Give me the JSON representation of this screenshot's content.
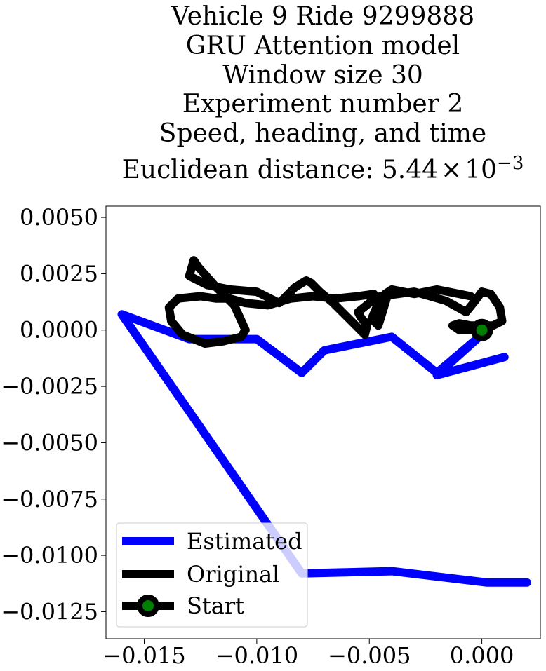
{
  "chart_data": {
    "type": "line",
    "title_lines": [
      "Vehicle 9 Ride 9299888",
      "GRU Attention model",
      "Window size 30",
      "Experiment number 2",
      "Speed, heading, and time"
    ],
    "distance_label": "Euclidean distance: ",
    "distance_mantissa": "5.44",
    "distance_times": "×",
    "distance_base": "10",
    "distance_exponent": "−3",
    "xlim": [
      -0.0167,
      0.0026
    ],
    "ylim": [
      -0.0137,
      0.0055
    ],
    "x_ticks": [
      {
        "value": -0.015,
        "label": "−0.015"
      },
      {
        "value": -0.01,
        "label": "−0.010"
      },
      {
        "value": -0.005,
        "label": "−0.005"
      },
      {
        "value": 0.0,
        "label": "0.000"
      }
    ],
    "y_ticks": [
      {
        "value": 0.005,
        "label": "0.0050"
      },
      {
        "value": 0.0025,
        "label": "0.0025"
      },
      {
        "value": 0.0,
        "label": "0.0000"
      },
      {
        "value": -0.0025,
        "label": "−0.0025"
      },
      {
        "value": -0.005,
        "label": "−0.0050"
      },
      {
        "value": -0.0075,
        "label": "−0.0075"
      },
      {
        "value": -0.01,
        "label": "−0.0100"
      },
      {
        "value": -0.0125,
        "label": "−0.0125"
      }
    ],
    "grid": false,
    "legend_position": "lower-left",
    "series": [
      {
        "name": "Estimated",
        "color": "#0000ff",
        "x": [
          0.001,
          -0.002,
          0.0,
          -0.002,
          -0.004,
          -0.007,
          -0.008,
          -0.01,
          -0.013,
          -0.016,
          -0.008,
          -0.004,
          0.0002,
          0.002
        ],
        "y": [
          -0.0012,
          -0.002,
          -0.0002,
          -0.0019,
          -0.0003,
          -0.0009,
          -0.0019,
          -0.0004,
          -0.0004,
          0.0007,
          -0.0108,
          -0.0107,
          -0.0112,
          -0.0112
        ]
      },
      {
        "name": "Original",
        "color": "#000000",
        "x": [
          0.0,
          -0.001,
          -0.0013,
          -0.001,
          -0.0005,
          0.0005,
          0.0009,
          0.0008,
          0.0004,
          0.0,
          -0.0003,
          -0.0007,
          -0.0016,
          -0.003,
          -0.0045,
          -0.005,
          -0.0055,
          -0.0054,
          -0.0051,
          -0.0052,
          -0.0056,
          -0.0066,
          -0.0072,
          -0.0076,
          -0.0078,
          -0.0083,
          -0.009,
          -0.01,
          -0.0112,
          -0.0122,
          -0.013,
          -0.0128,
          -0.0126,
          -0.0118,
          -0.011,
          -0.0105,
          -0.0107,
          -0.0115,
          -0.0123,
          -0.0133,
          -0.0138,
          -0.0139,
          -0.0135,
          -0.0125,
          -0.0118,
          -0.0112,
          -0.0105,
          -0.0095,
          -0.0085,
          -0.0075,
          -0.0065,
          -0.0055,
          -0.0048,
          -0.0046,
          -0.0049,
          -0.0046,
          -0.0042,
          -0.0043,
          -0.004,
          -0.003,
          -0.002,
          -0.001,
          -0.0005
        ],
        "y": [
          0.0,
          0.0,
          0.0002,
          0.0003,
          0.0002,
          0.0002,
          0.0004,
          0.001,
          0.0016,
          0.0017,
          0.0013,
          0.0008,
          0.0013,
          0.0017,
          0.0015,
          0.0012,
          0.0008,
          0.0006,
          0.0002,
          -0.0002,
          0.0002,
          0.0012,
          0.0017,
          0.0021,
          0.0022,
          0.0019,
          0.0012,
          0.0017,
          0.0018,
          0.002,
          0.0024,
          0.0031,
          0.0028,
          0.0019,
          0.0011,
          0.0,
          -0.0003,
          -0.0005,
          -0.0006,
          -0.0002,
          0.0004,
          0.001,
          0.0014,
          0.0015,
          0.0014,
          0.0014,
          0.0012,
          0.0011,
          0.0014,
          0.0015,
          0.0014,
          0.0015,
          0.0016,
          0.0012,
          0.0005,
          0.0002,
          0.0015,
          0.0016,
          0.0018,
          0.0016,
          0.0018,
          0.0016,
          0.0015
        ]
      },
      {
        "name": "Start",
        "color": "#000000",
        "marker_color": "#008000",
        "x": [
          0.0
        ],
        "y": [
          0.0
        ]
      }
    ]
  }
}
